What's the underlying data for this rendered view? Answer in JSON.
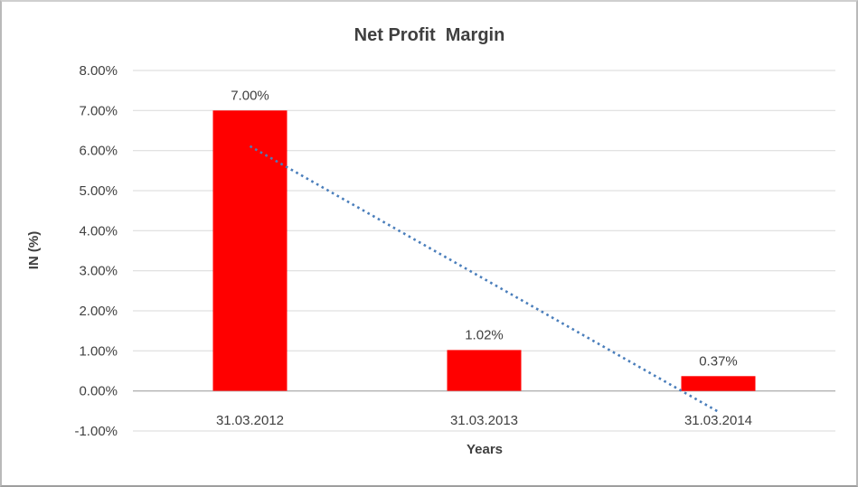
{
  "window": {
    "background_color": "#ffffff",
    "border_color": "#b9b9b9"
  },
  "chart_data": {
    "type": "bar",
    "title": "Net Profit  Margin",
    "xlabel": "Years",
    "ylabel": "IN (%)",
    "categories": [
      "31.03.2012",
      "31.03.2013",
      "31.03.2014"
    ],
    "values": [
      7.0,
      1.02,
      0.37
    ],
    "data_labels": [
      "7.00%",
      "1.02%",
      "0.37%"
    ],
    "ytick_values": [
      8,
      7,
      6,
      5,
      4,
      3,
      2,
      1,
      0,
      -1
    ],
    "ytick_labels": [
      "8.00%",
      "7.00%",
      "6.00%",
      "5.00%",
      "4.00%",
      "3.00%",
      "2.00%",
      "1.00%",
      "0.00%",
      "-1.00%"
    ],
    "ylim": [
      -1,
      8
    ],
    "grid": true,
    "legend": "none",
    "bar_color": "#ff0000",
    "gridline_color": "#d9d9d9",
    "axis_line_color": "#b3b3b3",
    "text_color": "#404040",
    "trendline": {
      "type": "linear",
      "style": "dotted",
      "color": "#4a7ebb",
      "start_value": 6.11,
      "end_value": -0.52
    }
  }
}
